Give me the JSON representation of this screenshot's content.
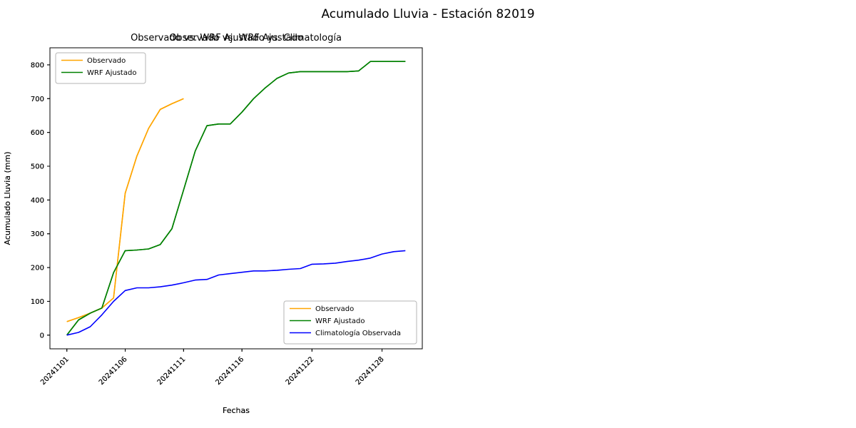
{
  "figure": {
    "suptitle": "Acumulado Lluvia - Estación 82019"
  },
  "colors": {
    "observado": "#ffa500",
    "wrf": "#008000",
    "climatologia": "#0000ff",
    "spine": "#000000",
    "legend_border": "#b5b5b5"
  },
  "chart_data": [
    {
      "type": "line",
      "title": "Observado vs. WRF Ajustado",
      "xlabel": "Fechas",
      "ylabel": "Acumulado Lluvia (mm)",
      "legend_loc": "upper left",
      "grid": false,
      "xlim": [
        -1.45,
        30.45
      ],
      "ylim": [
        -40.5,
        850.5
      ],
      "yticks": [
        0,
        100,
        200,
        300,
        400,
        500,
        600,
        700,
        800
      ],
      "x": [
        "20241101",
        "20241102",
        "20241103",
        "20241104",
        "20241105",
        "20241106",
        "20241107",
        "20241108",
        "20241109",
        "20241110",
        "20241111",
        "20241112",
        "20241113",
        "20241114",
        "20241115",
        "20241116",
        "20241117",
        "20241118",
        "20241119",
        "20241120",
        "20241121",
        "20241122",
        "20241123",
        "20241124",
        "20241125",
        "20241126",
        "20241127",
        "20241128",
        "20241129",
        "20241130"
      ],
      "xticks": [
        {
          "index": 0,
          "label": "20241101"
        },
        {
          "index": 5,
          "label": "20241106"
        },
        {
          "index": 10,
          "label": "20241111"
        },
        {
          "index": 15,
          "label": "20241116"
        },
        {
          "index": 21,
          "label": "20241122"
        },
        {
          "index": 27,
          "label": "20241128"
        }
      ],
      "series": [
        {
          "name": "Observado",
          "color": "#ffa500",
          "values": [
            40,
            52,
            65,
            80,
            110,
            420,
            530,
            612,
            668,
            685,
            700,
            null,
            null,
            null,
            null,
            null,
            null,
            null,
            null,
            null,
            null,
            null,
            null,
            null,
            null,
            null,
            null,
            null,
            null,
            null
          ]
        },
        {
          "name": "WRF Ajustado",
          "color": "#008000",
          "values": [
            0,
            45,
            65,
            80,
            185,
            250,
            252,
            255,
            268,
            315,
            430,
            545,
            620,
            625,
            625,
            660,
            700,
            732,
            760,
            776,
            780,
            780,
            780,
            780,
            780,
            782,
            810,
            810,
            810,
            810
          ]
        }
      ]
    },
    {
      "type": "line",
      "title": "Observado vs. WRF Ajustado vs. Climatología",
      "xlabel": "Fechas",
      "ylabel": "Acumulado Lluvia (mm)",
      "legend_loc": "lower right",
      "grid": false,
      "xlim": [
        -1.45,
        30.45
      ],
      "ylim": [
        -40.5,
        850.5
      ],
      "yticks": [
        0,
        100,
        200,
        300,
        400,
        500,
        600,
        700,
        800
      ],
      "x": [
        "20241101",
        "20241102",
        "20241103",
        "20241104",
        "20241105",
        "20241106",
        "20241107",
        "20241108",
        "20241109",
        "20241110",
        "20241111",
        "20241112",
        "20241113",
        "20241114",
        "20241115",
        "20241116",
        "20241117",
        "20241118",
        "20241119",
        "20241120",
        "20241121",
        "20241122",
        "20241123",
        "20241124",
        "20241125",
        "20241126",
        "20241127",
        "20241128",
        "20241129",
        "20241130"
      ],
      "xticks": [
        {
          "index": 0,
          "label": "20241101"
        },
        {
          "index": 5,
          "label": "20241106"
        },
        {
          "index": 10,
          "label": "20241111"
        },
        {
          "index": 15,
          "label": "20241116"
        },
        {
          "index": 21,
          "label": "20241122"
        },
        {
          "index": 27,
          "label": "20241128"
        }
      ],
      "series": [
        {
          "name": "Observado",
          "color": "#ffa500",
          "values": [
            40,
            52,
            65,
            80,
            110,
            420,
            530,
            612,
            668,
            685,
            700,
            null,
            null,
            null,
            null,
            null,
            null,
            null,
            null,
            null,
            null,
            null,
            null,
            null,
            null,
            null,
            null,
            null,
            null,
            null
          ]
        },
        {
          "name": "WRF Ajustado",
          "color": "#008000",
          "values": [
            0,
            45,
            65,
            80,
            185,
            250,
            252,
            255,
            268,
            315,
            430,
            545,
            620,
            625,
            625,
            660,
            700,
            732,
            760,
            776,
            780,
            780,
            780,
            780,
            780,
            782,
            810,
            810,
            810,
            810
          ]
        },
        {
          "name": "Climatología Observada",
          "color": "#0000ff",
          "values": [
            0,
            8,
            25,
            60,
            100,
            132,
            140,
            140,
            143,
            148,
            155,
            163,
            165,
            178,
            182,
            186,
            190,
            190,
            192,
            195,
            197,
            210,
            211,
            213,
            218,
            222,
            228,
            240,
            247,
            250
          ]
        }
      ]
    }
  ]
}
